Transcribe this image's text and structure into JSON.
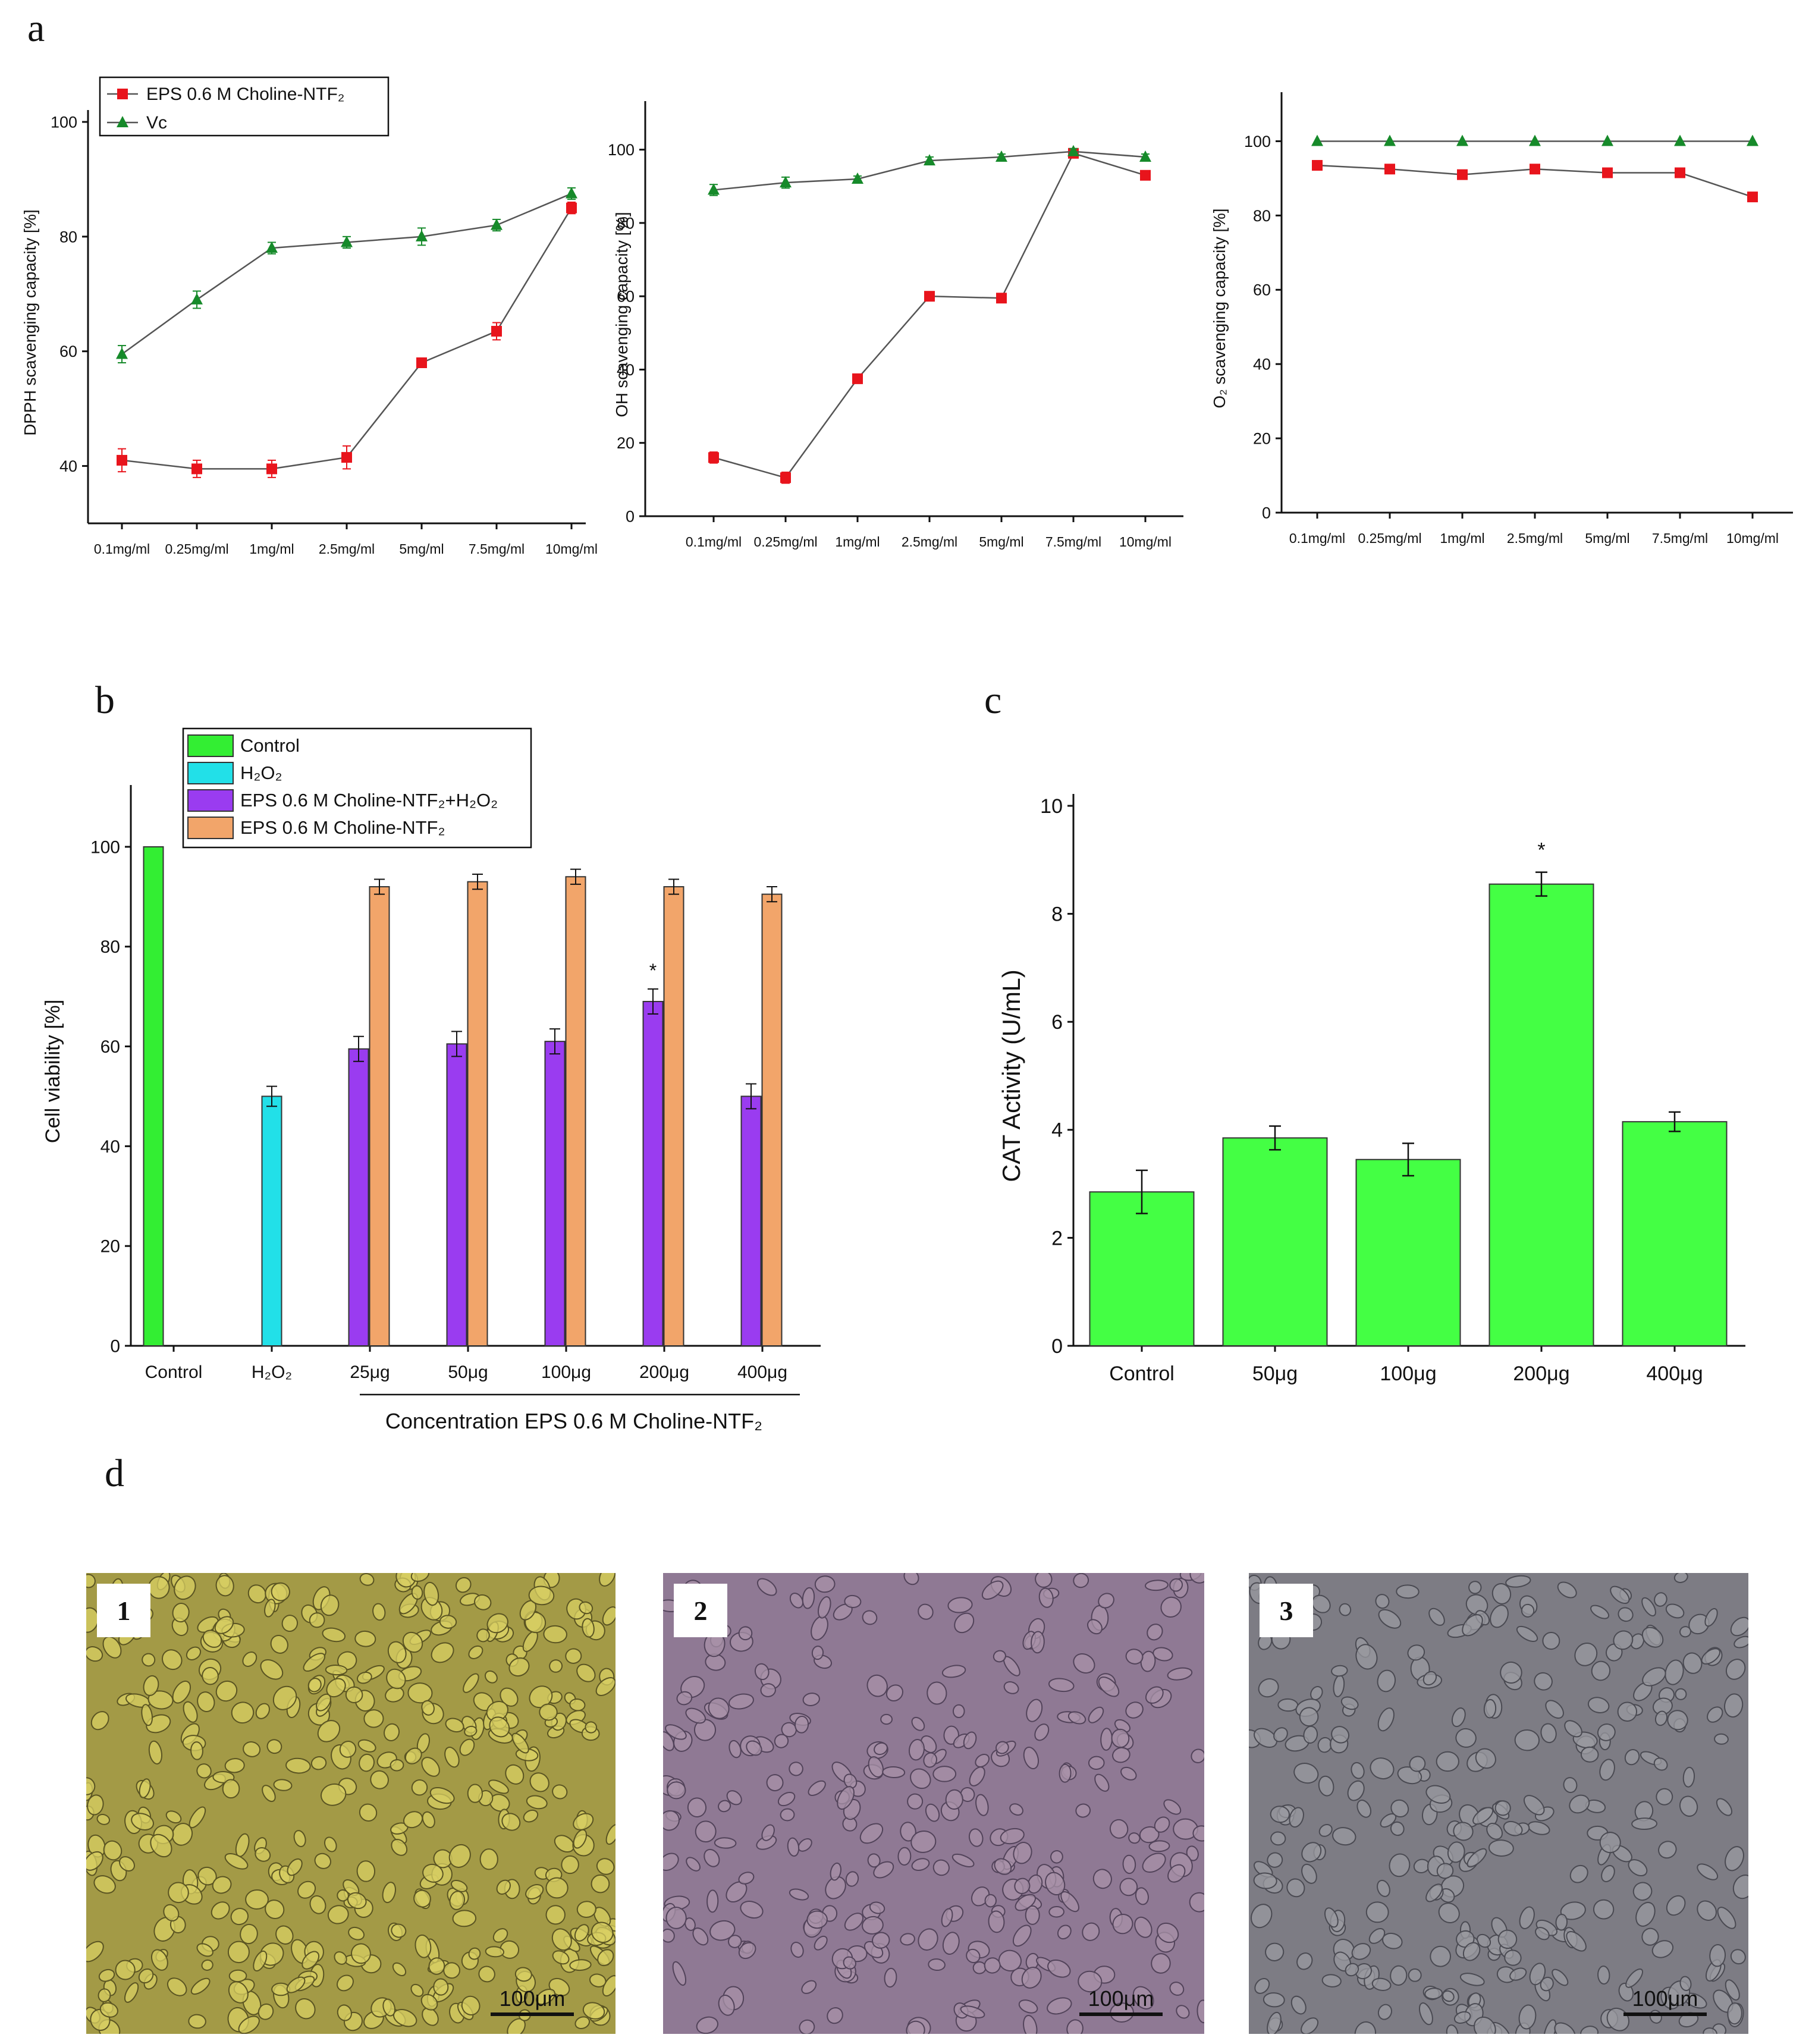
{
  "panel_letters": {
    "a": "a",
    "b": "b",
    "c": "c",
    "d": "d"
  },
  "chart_data": [
    {
      "id": "dpph",
      "type": "line",
      "ylabel": "DPPH scavenging capacity [%]",
      "categories": [
        "0.1mg/ml",
        "0.25mg/ml",
        "1mg/ml",
        "2.5mg/ml",
        "5mg/ml",
        "7.5mg/ml",
        "10mg/ml"
      ],
      "ylim": [
        30,
        100
      ],
      "yticks": [
        40,
        60,
        80,
        100
      ],
      "legend": "top-left",
      "series": [
        {
          "name": "EPS 0.6 M Choline-NTF₂",
          "color": "#e8141c",
          "marker": "square",
          "values": [
            41,
            39.5,
            39.5,
            41.5,
            58,
            63.5,
            85
          ],
          "errors": [
            2,
            1.5,
            1.5,
            2,
            0.8,
            1.5,
            1
          ]
        },
        {
          "name": "Vc",
          "color": "#168a2a",
          "marker": "triangle",
          "values": [
            59.5,
            69,
            78,
            79,
            80,
            82,
            87.5
          ],
          "errors": [
            1.5,
            1.5,
            1,
            1,
            1.5,
            1,
            1
          ]
        }
      ]
    },
    {
      "id": "oh",
      "type": "line",
      "ylabel": "OH scavenging capacity [%]",
      "categories": [
        "0.1mg/ml",
        "0.25mg/ml",
        "1mg/ml",
        "2.5mg/ml",
        "5mg/ml",
        "7.5mg/ml",
        "10mg/ml"
      ],
      "ylim": [
        0,
        110
      ],
      "yticks": [
        0,
        20,
        40,
        60,
        80,
        100
      ],
      "series": [
        {
          "name": "EPS",
          "color": "#e8141c",
          "marker": "square",
          "values": [
            16,
            10.5,
            37.5,
            60,
            59.5,
            99,
            93
          ],
          "errors": [
            1.5,
            1.5,
            0.8,
            0.8,
            0.8,
            0.8,
            1
          ]
        },
        {
          "name": "Vc",
          "color": "#168a2a",
          "marker": "triangle",
          "values": [
            89,
            91,
            92,
            97,
            98,
            99.5,
            98
          ],
          "errors": [
            1.5,
            1.5,
            0.8,
            1,
            0.8,
            0.8,
            0.8
          ]
        }
      ]
    },
    {
      "id": "o2",
      "type": "line",
      "ylabel": "O₂ scavenging capacity [%]",
      "categories": [
        "0.1mg/ml",
        "0.25mg/ml",
        "1mg/ml",
        "2.5mg/ml",
        "5mg/ml",
        "7.5mg/ml",
        "10mg/ml"
      ],
      "ylim": [
        0,
        110
      ],
      "yticks": [
        0,
        20,
        40,
        60,
        80,
        100
      ],
      "series": [
        {
          "name": "EPS",
          "color": "#e8141c",
          "marker": "square",
          "values": [
            93.5,
            92.5,
            91,
            92.5,
            91.5,
            91.5,
            85
          ],
          "errors": [
            1,
            1,
            1,
            0.8,
            1,
            1,
            1
          ]
        },
        {
          "name": "Vc",
          "color": "#168a2a",
          "marker": "triangle",
          "values": [
            100,
            100,
            100,
            100,
            100,
            100,
            100
          ],
          "errors": [
            0,
            0,
            0,
            0,
            0,
            0,
            0
          ]
        }
      ]
    },
    {
      "id": "viability",
      "type": "bar",
      "ylabel": "Cell viability [%]",
      "xlabel": "Concentration EPS 0.6 M Choline-NTF₂",
      "categories": [
        "Control",
        "H₂O₂",
        "25μg",
        "50μg",
        "100μg",
        "200μg",
        "400μg"
      ],
      "ylim": [
        0,
        110
      ],
      "yticks": [
        0,
        20,
        40,
        60,
        80,
        100
      ],
      "legend": "top",
      "series": [
        {
          "name": "Control",
          "color": "#33ee33"
        },
        {
          "name": "H₂O₂",
          "color": "#22e0e8"
        },
        {
          "name": "EPS 0.6 M Choline-NTF₂+H₂O₂",
          "color": "#9a3cf0"
        },
        {
          "name": "EPS 0.6 M Choline-NTF₂",
          "color": "#f2a56a"
        }
      ],
      "bars": [
        {
          "category": 0,
          "series": 0,
          "value": 100,
          "error": 0
        },
        {
          "category": 1,
          "series": 1,
          "value": 50,
          "error": 2
        },
        {
          "category": 2,
          "series": 2,
          "value": 59.5,
          "error": 2.5
        },
        {
          "category": 2,
          "series": 3,
          "value": 92,
          "error": 1.5
        },
        {
          "category": 3,
          "series": 2,
          "value": 60.5,
          "error": 2.5
        },
        {
          "category": 3,
          "series": 3,
          "value": 93,
          "error": 1.5
        },
        {
          "category": 4,
          "series": 2,
          "value": 61,
          "error": 2.5
        },
        {
          "category": 4,
          "series": 3,
          "value": 94,
          "error": 1.5
        },
        {
          "category": 5,
          "series": 2,
          "value": 69,
          "error": 2.5
        },
        {
          "category": 5,
          "series": 3,
          "value": 92,
          "error": 1.5
        },
        {
          "category": 6,
          "series": 2,
          "value": 50,
          "error": 2.5
        },
        {
          "category": 6,
          "series": 3,
          "value": 90.5,
          "error": 1.5
        }
      ],
      "annotations": [
        {
          "category": 5,
          "series": 2,
          "text": "*"
        }
      ]
    },
    {
      "id": "cat",
      "type": "bar",
      "ylabel": "CAT Activity (U/mL)",
      "categories": [
        "Control",
        "50μg",
        "100μg",
        "200μg",
        "400μg"
      ],
      "values": [
        2.85,
        3.85,
        3.45,
        8.55,
        4.15
      ],
      "errors": [
        0.4,
        0.22,
        0.3,
        0.22,
        0.18
      ],
      "color": "#44ff44",
      "ylim": [
        0,
        10
      ],
      "yticks": [
        0,
        2,
        4,
        6,
        8,
        10
      ],
      "annotations": [
        {
          "category": 3,
          "text": "*"
        }
      ]
    }
  ],
  "micrographs": [
    {
      "label": "1",
      "scale": "100μm",
      "tint": "#a39a46",
      "cell": "#d8cf63",
      "edge": "#5a5422"
    },
    {
      "label": "2",
      "scale": "100μm",
      "tint": "#8f7994",
      "cell": "#a892a8",
      "edge": "#52435a"
    },
    {
      "label": "3",
      "scale": "100μm",
      "tint": "#7d7c84",
      "cell": "#9a99a0",
      "edge": "#4a4a52"
    }
  ]
}
